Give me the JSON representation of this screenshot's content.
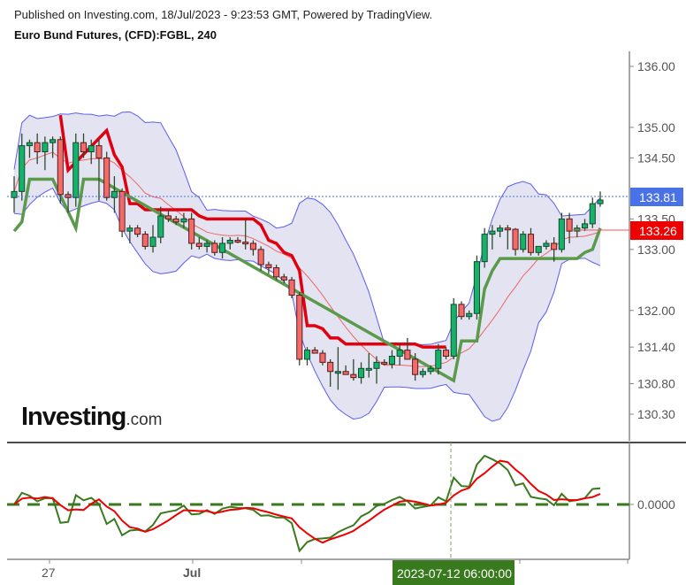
{
  "header": {
    "published": "Published on Investing.com, 18/Jul/2023 - 9:23:53 GMT, Powered by TradingView.",
    "title": "Euro Bund Futures, (CFD):FGBL, 240"
  },
  "logo": {
    "main": "Investing",
    "suffix": ".com"
  },
  "price_axis": {
    "ticks": [
      "136.00",
      "135.00",
      "134.50",
      "133.50",
      "133.00",
      "132.00",
      "131.40",
      "130.80",
      "130.30"
    ],
    "current_price": {
      "label": "133.81",
      "color": "#4a72e8"
    },
    "line_price": {
      "label": "133.26",
      "color": "#ee0000"
    }
  },
  "oscillator_axis": {
    "ticks": [
      "0.0000"
    ]
  },
  "time_axis": {
    "labels": [
      "27",
      "Jul"
    ],
    "crosshair_label": "2023-07-12 06:00:00",
    "crosshair_color": "#3a7a1e"
  },
  "chart_data": {
    "type": "candlestick",
    "title": "Euro Bund Futures, (CFD):FGBL, 240",
    "ylim": [
      130.0,
      136.2
    ],
    "y_ticks": [
      136.0,
      135.0,
      134.5,
      133.5,
      133.0,
      132.0,
      131.4,
      130.8,
      130.3
    ],
    "x_labels": [
      "27",
      "Jul"
    ],
    "last_price": 133.81,
    "indicator_line_value": 133.26,
    "candles_approx": [
      {
        "o": 133.85,
        "h": 134.2,
        "l": 133.6,
        "c": 133.95
      },
      {
        "o": 133.95,
        "h": 134.9,
        "l": 133.8,
        "c": 134.7
      },
      {
        "o": 134.7,
        "h": 134.8,
        "l": 134.5,
        "c": 134.75
      },
      {
        "o": 134.75,
        "h": 134.9,
        "l": 134.4,
        "c": 134.6
      },
      {
        "o": 134.6,
        "h": 134.85,
        "l": 134.3,
        "c": 134.75
      },
      {
        "o": 134.75,
        "h": 134.85,
        "l": 134.5,
        "c": 134.8
      },
      {
        "o": 134.8,
        "h": 134.85,
        "l": 133.75,
        "c": 133.9
      },
      {
        "o": 133.9,
        "h": 133.95,
        "l": 133.6,
        "c": 133.85
      },
      {
        "o": 133.85,
        "h": 134.9,
        "l": 133.7,
        "c": 134.75
      },
      {
        "o": 134.75,
        "h": 134.9,
        "l": 134.5,
        "c": 134.6
      },
      {
        "o": 134.6,
        "h": 134.8,
        "l": 134.4,
        "c": 134.7
      },
      {
        "o": 134.7,
        "h": 134.8,
        "l": 133.8,
        "c": 134.5
      },
      {
        "o": 134.5,
        "h": 134.6,
        "l": 133.8,
        "c": 133.85
      },
      {
        "o": 133.85,
        "h": 134.2,
        "l": 133.6,
        "c": 133.95
      },
      {
        "o": 133.95,
        "h": 134.0,
        "l": 133.2,
        "c": 133.3
      },
      {
        "o": 133.3,
        "h": 133.4,
        "l": 133.1,
        "c": 133.35
      },
      {
        "o": 133.35,
        "h": 133.4,
        "l": 133.2,
        "c": 133.25
      },
      {
        "o": 133.25,
        "h": 133.3,
        "l": 133.0,
        "c": 133.05
      },
      {
        "o": 133.05,
        "h": 133.4,
        "l": 132.95,
        "c": 133.2
      },
      {
        "o": 133.2,
        "h": 133.7,
        "l": 133.1,
        "c": 133.55
      },
      {
        "o": 133.55,
        "h": 133.65,
        "l": 133.45,
        "c": 133.5
      },
      {
        "o": 133.5,
        "h": 133.55,
        "l": 133.4,
        "c": 133.45
      },
      {
        "o": 133.45,
        "h": 133.6,
        "l": 133.35,
        "c": 133.5
      },
      {
        "o": 133.5,
        "h": 133.6,
        "l": 133.0,
        "c": 133.1
      },
      {
        "o": 133.1,
        "h": 133.2,
        "l": 133.0,
        "c": 133.05
      },
      {
        "o": 133.05,
        "h": 133.15,
        "l": 132.95,
        "c": 133.1
      },
      {
        "o": 133.1,
        "h": 133.15,
        "l": 132.9,
        "c": 132.95
      },
      {
        "o": 132.95,
        "h": 133.2,
        "l": 132.85,
        "c": 133.1
      },
      {
        "o": 133.1,
        "h": 133.2,
        "l": 133.0,
        "c": 133.15
      },
      {
        "o": 133.15,
        "h": 133.2,
        "l": 133.1,
        "c": 133.12
      },
      {
        "o": 133.12,
        "h": 133.5,
        "l": 133.0,
        "c": 133.1
      },
      {
        "o": 133.1,
        "h": 133.15,
        "l": 132.9,
        "c": 133.0
      },
      {
        "o": 133.0,
        "h": 133.05,
        "l": 132.65,
        "c": 132.75
      },
      {
        "o": 132.75,
        "h": 132.8,
        "l": 132.6,
        "c": 132.7
      },
      {
        "o": 132.7,
        "h": 132.75,
        "l": 132.5,
        "c": 132.55
      },
      {
        "o": 132.55,
        "h": 132.6,
        "l": 132.45,
        "c": 132.5
      },
      {
        "o": 132.5,
        "h": 132.55,
        "l": 132.2,
        "c": 132.25
      },
      {
        "o": 132.25,
        "h": 132.3,
        "l": 131.1,
        "c": 131.2
      },
      {
        "o": 131.2,
        "h": 131.4,
        "l": 131.1,
        "c": 131.35
      },
      {
        "o": 131.35,
        "h": 131.4,
        "l": 131.3,
        "c": 131.3
      },
      {
        "o": 131.3,
        "h": 131.35,
        "l": 131.1,
        "c": 131.15
      },
      {
        "o": 131.15,
        "h": 131.2,
        "l": 130.75,
        "c": 131.0
      },
      {
        "o": 131.0,
        "h": 131.4,
        "l": 130.7,
        "c": 131.0
      },
      {
        "o": 131.0,
        "h": 131.1,
        "l": 130.95,
        "c": 130.95
      },
      {
        "o": 130.95,
        "h": 131.2,
        "l": 130.85,
        "c": 130.9
      },
      {
        "o": 130.9,
        "h": 131.15,
        "l": 130.8,
        "c": 131.05
      },
      {
        "o": 131.05,
        "h": 131.3,
        "l": 130.9,
        "c": 131.05
      },
      {
        "o": 131.05,
        "h": 131.25,
        "l": 130.8,
        "c": 131.15
      },
      {
        "o": 131.15,
        "h": 131.2,
        "l": 131.1,
        "c": 131.12
      },
      {
        "o": 131.12,
        "h": 131.35,
        "l": 131.05,
        "c": 131.25
      },
      {
        "o": 131.25,
        "h": 131.45,
        "l": 131.1,
        "c": 131.35
      },
      {
        "o": 131.35,
        "h": 131.55,
        "l": 131.3,
        "c": 131.2
      },
      {
        "o": 131.2,
        "h": 131.3,
        "l": 130.85,
        "c": 130.95
      },
      {
        "o": 130.95,
        "h": 131.05,
        "l": 130.9,
        "c": 131.0
      },
      {
        "o": 131.0,
        "h": 131.1,
        "l": 130.95,
        "c": 131.05
      },
      {
        "o": 131.05,
        "h": 131.45,
        "l": 130.95,
        "c": 131.35
      },
      {
        "o": 131.35,
        "h": 131.4,
        "l": 131.2,
        "c": 131.25
      },
      {
        "o": 131.25,
        "h": 132.2,
        "l": 131.2,
        "c": 132.1
      },
      {
        "o": 132.1,
        "h": 132.15,
        "l": 131.85,
        "c": 131.9
      },
      {
        "o": 131.9,
        "h": 132.0,
        "l": 131.85,
        "c": 131.95
      },
      {
        "o": 131.95,
        "h": 132.9,
        "l": 131.85,
        "c": 132.8
      },
      {
        "o": 132.8,
        "h": 133.35,
        "l": 132.7,
        "c": 133.25
      },
      {
        "o": 133.25,
        "h": 133.4,
        "l": 133.0,
        "c": 133.3
      },
      {
        "o": 133.3,
        "h": 133.4,
        "l": 133.2,
        "c": 133.35
      },
      {
        "o": 133.35,
        "h": 133.4,
        "l": 133.0,
        "c": 133.33
      },
      {
        "o": 133.33,
        "h": 133.35,
        "l": 132.9,
        "c": 133.0
      },
      {
        "o": 133.0,
        "h": 133.3,
        "l": 132.95,
        "c": 133.25
      },
      {
        "o": 133.25,
        "h": 133.35,
        "l": 132.9,
        "c": 132.95
      },
      {
        "o": 132.95,
        "h": 133.05,
        "l": 132.9,
        "c": 133.05
      },
      {
        "o": 133.05,
        "h": 133.15,
        "l": 133.0,
        "c": 133.1
      },
      {
        "o": 133.1,
        "h": 133.2,
        "l": 132.8,
        "c": 133.0
      },
      {
        "o": 133.0,
        "h": 133.6,
        "l": 132.95,
        "c": 133.5
      },
      {
        "o": 133.5,
        "h": 133.6,
        "l": 133.1,
        "c": 133.3
      },
      {
        "o": 133.3,
        "h": 133.4,
        "l": 133.2,
        "c": 133.35
      },
      {
        "o": 133.35,
        "h": 133.5,
        "l": 133.3,
        "c": 133.42
      },
      {
        "o": 133.42,
        "h": 133.85,
        "l": 133.35,
        "c": 133.75
      },
      {
        "o": 133.75,
        "h": 133.95,
        "l": 133.7,
        "c": 133.81
      }
    ],
    "indicators": [
      "Bollinger Bands (upper/lower, blue)",
      "Moving average (thin red)",
      "Trailing stop/SAR (thick red=downtrend, thick green=uptrend)"
    ],
    "oscillator": {
      "zero_line": 0.0,
      "series": [
        {
          "name": "fast",
          "color": "#3a7a1e"
        },
        {
          "name": "slow",
          "color": "#ee0000"
        }
      ]
    },
    "crosshair_time": "2023-07-12 06:00:00"
  }
}
